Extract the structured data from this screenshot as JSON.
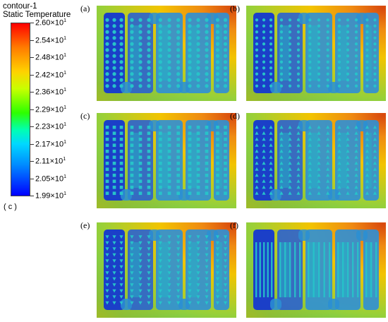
{
  "legend": {
    "title_line1": "contour-1",
    "title_line2": "Static Temperature",
    "ticks": [
      {
        "mantissa": "2.60",
        "exp": "1"
      },
      {
        "mantissa": "2.54",
        "exp": "1"
      },
      {
        "mantissa": "2.48",
        "exp": "1"
      },
      {
        "mantissa": "2.42",
        "exp": "1"
      },
      {
        "mantissa": "2.36",
        "exp": "1"
      },
      {
        "mantissa": "2.29",
        "exp": "1"
      },
      {
        "mantissa": "2.23",
        "exp": "1"
      },
      {
        "mantissa": "2.17",
        "exp": "1"
      },
      {
        "mantissa": "2.11",
        "exp": "1"
      },
      {
        "mantissa": "2.05",
        "exp": "1"
      },
      {
        "mantissa": "1.99",
        "exp": "1"
      }
    ],
    "corner_label": "( c )"
  },
  "panels": [
    {
      "label": "(a)",
      "pin": "circle"
    },
    {
      "label": "(b)",
      "pin": "circle-small"
    },
    {
      "label": "(c)",
      "pin": "square"
    },
    {
      "label": "(d)",
      "pin": "triangle"
    },
    {
      "label": "(e)",
      "pin": "triangle-down"
    },
    {
      "label": "(f)",
      "pin": "slot"
    }
  ],
  "colors": {
    "hot": "#d8480e",
    "warm": "#f2c400",
    "mid": "#5fc85a",
    "cool": "#22b6c8",
    "cold": "#1b3fc8"
  }
}
